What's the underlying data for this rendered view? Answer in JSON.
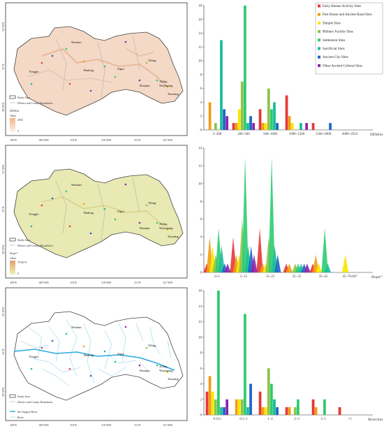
{
  "colors": {
    "categories": [
      "#e53935",
      "#f39c12",
      "#f5e700",
      "#8bc34a",
      "#2ecc71",
      "#1abc9c",
      "#1e66c8",
      "#8e24aa"
    ]
  },
  "legend": {
    "items": [
      "Early Human Activity Sites",
      "Post House and Ancient Road Sites",
      "Temple Sites",
      "Military Facility Sites",
      "Settlement Sites",
      "Sacrificial Sites",
      "Ancient City Sites",
      "Other Ancient Cultural Sites"
    ]
  },
  "maps": [
    {
      "lon_ticks": [
        "109°E",
        "109°30'E",
        "110°E",
        "110°30'E",
        "111°E",
        "111°30'E"
      ],
      "lat_ticks": [
        "31°30'N",
        "31°N",
        "30°30'N"
      ],
      "places": [
        "Wushan",
        "Fengjie",
        "Badong",
        "Zigui",
        "Yiling",
        "Dianjun",
        "Xiling",
        "Wujiagang",
        "Xiaoting"
      ],
      "legend": {
        "study_area": "Study Area",
        "district": "District and County Boundaries",
        "title": "DEM/m",
        "value_label": "Value",
        "high": "2933",
        "low": "3"
      }
    },
    {
      "lon_ticks": [
        "109°E",
        "109°30'E",
        "110°E",
        "110°30'E",
        "111°E",
        "111°30'E"
      ],
      "lat_ticks": [
        "31°30'N",
        "31°N",
        "30°30'N"
      ],
      "places": [
        "Wushan",
        "Fengjie",
        "Badong",
        "Zigui",
        "Yiling",
        "Dianjun",
        "Xiling",
        "Wujiagang",
        "Xiaoting"
      ],
      "legend": {
        "study_area": "Study Area",
        "district": "District and County Boundaries",
        "title": "Slope/°",
        "value_label": "Value",
        "high": "79.0674",
        "low": "0"
      }
    },
    {
      "lon_ticks": [
        "109°E",
        "109°30'E",
        "110°E",
        "110°30'E",
        "111°E",
        "111°30'E"
      ],
      "lat_ticks": [
        "31°30'N",
        "31°N",
        "30°30'N"
      ],
      "places": [
        "Wushan",
        "Fengjie",
        "Badong",
        "Zigui",
        "Yiling",
        "Dianjun",
        "Xiling",
        "Wujiagang",
        "Xiaoting"
      ],
      "legend": {
        "study_area": "Study Area",
        "district": "District and County Boundaries",
        "yangtze": "the Yangtze River",
        "river": "River"
      }
    }
  ],
  "chart_data": [
    {
      "type": "bar",
      "xlabel": "DEM/m",
      "ylim": [
        0,
        18
      ],
      "yticks": [
        0,
        2,
        4,
        6,
        8,
        10,
        12,
        14,
        16,
        18
      ],
      "categories": [
        "3–200",
        "200–500",
        "500–1000",
        "1000–1500",
        "1500–2000",
        "2000–2933"
      ],
      "series": [
        {
          "name": "Early Human Activity Sites",
          "values": [
            0,
            1,
            3,
            5,
            1,
            0
          ]
        },
        {
          "name": "Post House and Ancient Road Sites",
          "values": [
            4,
            1,
            1,
            2,
            0,
            0
          ]
        },
        {
          "name": "Temple Sites",
          "values": [
            0,
            3,
            1,
            1,
            0,
            0
          ]
        },
        {
          "name": "Military Facility Sites",
          "values": [
            1,
            7,
            6,
            0,
            0,
            0
          ]
        },
        {
          "name": "Settlement Sites",
          "values": [
            0,
            18,
            3,
            0,
            0,
            0
          ]
        },
        {
          "name": "Sacrificial Sites",
          "values": [
            13,
            1,
            4,
            1,
            0,
            0
          ]
        },
        {
          "name": "Ancient City Sites",
          "values": [
            3,
            2,
            1,
            0,
            1,
            0
          ]
        },
        {
          "name": "Other Ancient Cultural Sites",
          "values": [
            2,
            1,
            0,
            1,
            0,
            0
          ]
        }
      ]
    },
    {
      "type": "area",
      "xlabel": "Slope/°",
      "ylim": [
        0,
        14
      ],
      "yticks": [
        0,
        2,
        4,
        6,
        8,
        10,
        12,
        14
      ],
      "categories": [
        "0–5",
        "5–15",
        "15–25",
        "25–35",
        "35–45",
        "45–79.067"
      ],
      "series": [
        {
          "name": "Early Human Activity Sites",
          "values": [
            1,
            4,
            5,
            1,
            1,
            0
          ]
        },
        {
          "name": "Post House and Ancient Road Sites",
          "values": [
            4,
            2,
            1,
            1,
            2,
            0
          ]
        },
        {
          "name": "Temple Sites",
          "values": [
            3,
            2,
            1,
            0,
            1,
            2
          ]
        },
        {
          "name": "Military Facility Sites",
          "values": [
            2,
            6,
            4,
            1,
            0,
            0
          ]
        },
        {
          "name": "Settlement Sites",
          "values": [
            5,
            13,
            13,
            1,
            5,
            0
          ]
        },
        {
          "name": "Sacrificial Sites",
          "values": [
            3,
            3,
            3,
            1,
            1,
            0
          ]
        },
        {
          "name": "Ancient City Sites",
          "values": [
            1,
            3,
            2,
            1,
            0,
            0
          ]
        },
        {
          "name": "Other Ancient Cultural Sites",
          "values": [
            1,
            2,
            0,
            1,
            0,
            0
          ]
        }
      ]
    },
    {
      "type": "bar",
      "xlabel": "River/km",
      "ylim": [
        0,
        16
      ],
      "yticks": [
        0,
        2,
        4,
        6,
        8,
        10,
        12,
        14,
        16
      ],
      "categories": [
        "0–0.5",
        "0.5–1",
        "1–2",
        "2–3",
        "3–5",
        ">5"
      ],
      "series": [
        {
          "name": "Early Human Activity Sites",
          "values": [
            3,
            0,
            3,
            1,
            2,
            1
          ]
        },
        {
          "name": "Post House and Ancient Road Sites",
          "values": [
            5,
            2,
            1,
            1,
            1,
            0
          ]
        },
        {
          "name": "Temple Sites",
          "values": [
            3,
            2,
            1,
            0,
            0,
            0
          ]
        },
        {
          "name": "Military Facility Sites",
          "values": [
            2,
            2,
            6,
            1,
            0,
            0
          ]
        },
        {
          "name": "Settlement Sites",
          "values": [
            16,
            13,
            4,
            2,
            2,
            0
          ]
        },
        {
          "name": "Sacrificial Sites",
          "values": [
            1,
            1,
            2,
            0,
            0,
            0
          ]
        },
        {
          "name": "Ancient City Sites",
          "values": [
            1,
            4,
            1,
            0,
            0,
            0
          ]
        },
        {
          "name": "Other Ancient Cultural Sites",
          "values": [
            2,
            0,
            0,
            0,
            0,
            0
          ]
        }
      ]
    }
  ]
}
